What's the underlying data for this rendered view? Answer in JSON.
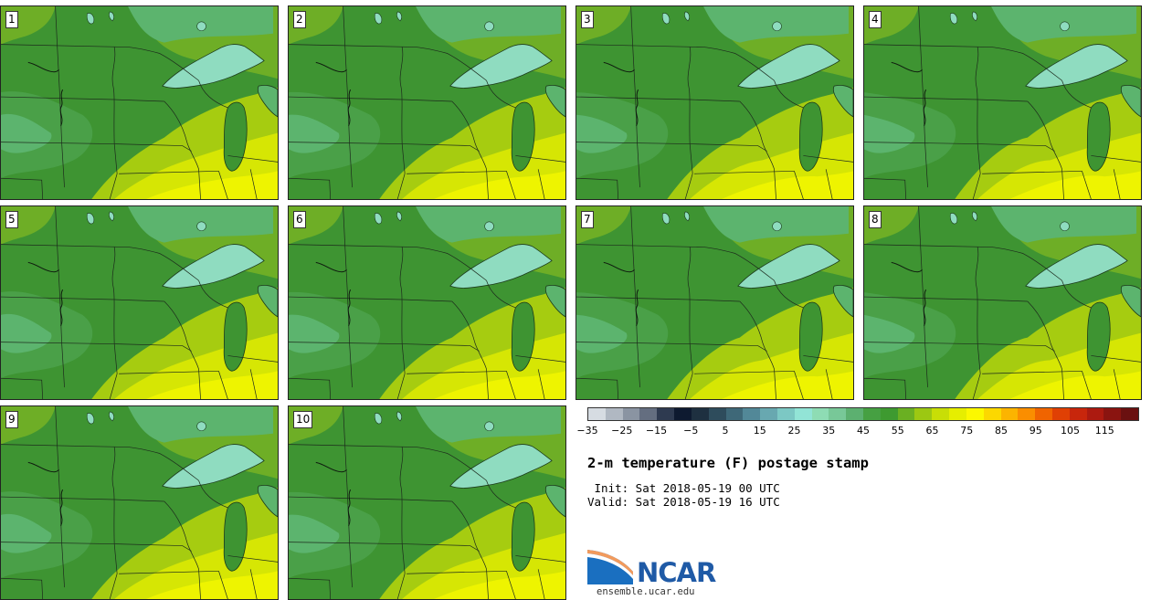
{
  "figure": {
    "title": "2-m temperature (F) postage stamp",
    "init_label": " Init: Sat 2018-05-19 00 UTC",
    "valid_label": "Valid: Sat 2018-05-19 16 UTC",
    "source_url": "ensemble.ucar.edu",
    "logo_text": "NCAR"
  },
  "members": [
    {
      "label": "1"
    },
    {
      "label": "2"
    },
    {
      "label": "3"
    },
    {
      "label": "4"
    },
    {
      "label": "5"
    },
    {
      "label": "6"
    },
    {
      "label": "7"
    },
    {
      "label": "8"
    },
    {
      "label": "9"
    },
    {
      "label": "10"
    }
  ],
  "colorbar": {
    "ticks": [
      "−35",
      "−25",
      "−15",
      "−5",
      "5",
      "15",
      "25",
      "35",
      "45",
      "55",
      "65",
      "75",
      "85",
      "95",
      "105",
      "115"
    ],
    "colors": [
      "#d6dce2",
      "#b0b8c2",
      "#8a94a2",
      "#646e80",
      "#2e3a50",
      "#0e1a30",
      "#1e3040",
      "#2e4c5c",
      "#3e6878",
      "#528898",
      "#68a8b0",
      "#7cc8c4",
      "#92e4d6",
      "#8edcb4",
      "#78c898",
      "#5cb070",
      "#46a042",
      "#3e9a30",
      "#6ab022",
      "#9cc812",
      "#c8de06",
      "#e6ee00",
      "#fcf800",
      "#fcd800",
      "#fcb400",
      "#fa8e00",
      "#f06400",
      "#e04004",
      "#c8260c",
      "#ac1a10",
      "#8a1410",
      "#6a1010"
    ]
  },
  "colors": {
    "t35_45": "#8fdcc0",
    "t45_50": "#5cb46e",
    "t50_55": "#4aa048",
    "t55_60": "#3e9432",
    "t60_65": "#6eae26",
    "t65_70": "#a6cc10",
    "t70_75": "#d6e604",
    "t75_80": "#eef400"
  }
}
